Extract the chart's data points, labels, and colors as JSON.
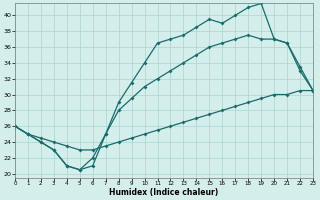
{
  "xlabel": "Humidex (Indice chaleur)",
  "ylabel": "",
  "xlim": [
    0,
    23
  ],
  "ylim": [
    19.5,
    41.5
  ],
  "xticks": [
    0,
    1,
    2,
    3,
    4,
    5,
    6,
    7,
    8,
    9,
    10,
    11,
    12,
    13,
    14,
    15,
    16,
    17,
    18,
    19,
    20,
    21,
    22,
    23
  ],
  "yticks": [
    20,
    22,
    24,
    26,
    28,
    30,
    32,
    34,
    36,
    38,
    40
  ],
  "bg_color": "#d4eeeb",
  "grid_color": "#aed4d0",
  "line_color": "#1a6b6b",
  "line1_x": [
    0,
    1,
    2,
    3,
    4,
    5,
    6,
    7,
    8,
    9,
    10,
    11,
    12,
    13,
    14,
    15,
    16,
    17,
    18,
    19,
    20,
    21,
    22,
    23
  ],
  "line1_y": [
    26,
    25,
    24,
    23,
    21,
    20.5,
    21,
    25,
    29,
    31.5,
    34,
    36.5,
    37,
    37.5,
    38.5,
    39.5,
    39,
    40,
    41,
    41.5,
    37,
    36.5,
    33,
    30.5
  ],
  "line2_x": [
    0,
    1,
    2,
    3,
    4,
    5,
    6,
    7,
    8,
    9,
    10,
    11,
    12,
    13,
    14,
    15,
    16,
    17,
    18,
    19,
    20,
    21,
    22,
    23
  ],
  "line2_y": [
    26,
    25,
    24,
    23,
    21,
    20.5,
    22,
    25,
    28,
    29.5,
    31,
    32,
    33,
    34,
    35,
    36,
    36.5,
    37,
    37.5,
    37,
    37,
    36.5,
    33.5,
    30.5
  ],
  "line3_x": [
    0,
    1,
    2,
    3,
    4,
    5,
    6,
    7,
    8,
    9,
    10,
    11,
    12,
    13,
    14,
    15,
    16,
    17,
    18,
    19,
    20,
    21,
    22,
    23
  ],
  "line3_y": [
    26,
    25,
    24.5,
    24,
    23.5,
    23,
    23,
    23.5,
    24,
    24.5,
    25,
    25.5,
    26,
    26.5,
    27,
    27.5,
    28,
    28.5,
    29,
    29.5,
    30,
    30,
    30.5,
    30.5
  ]
}
